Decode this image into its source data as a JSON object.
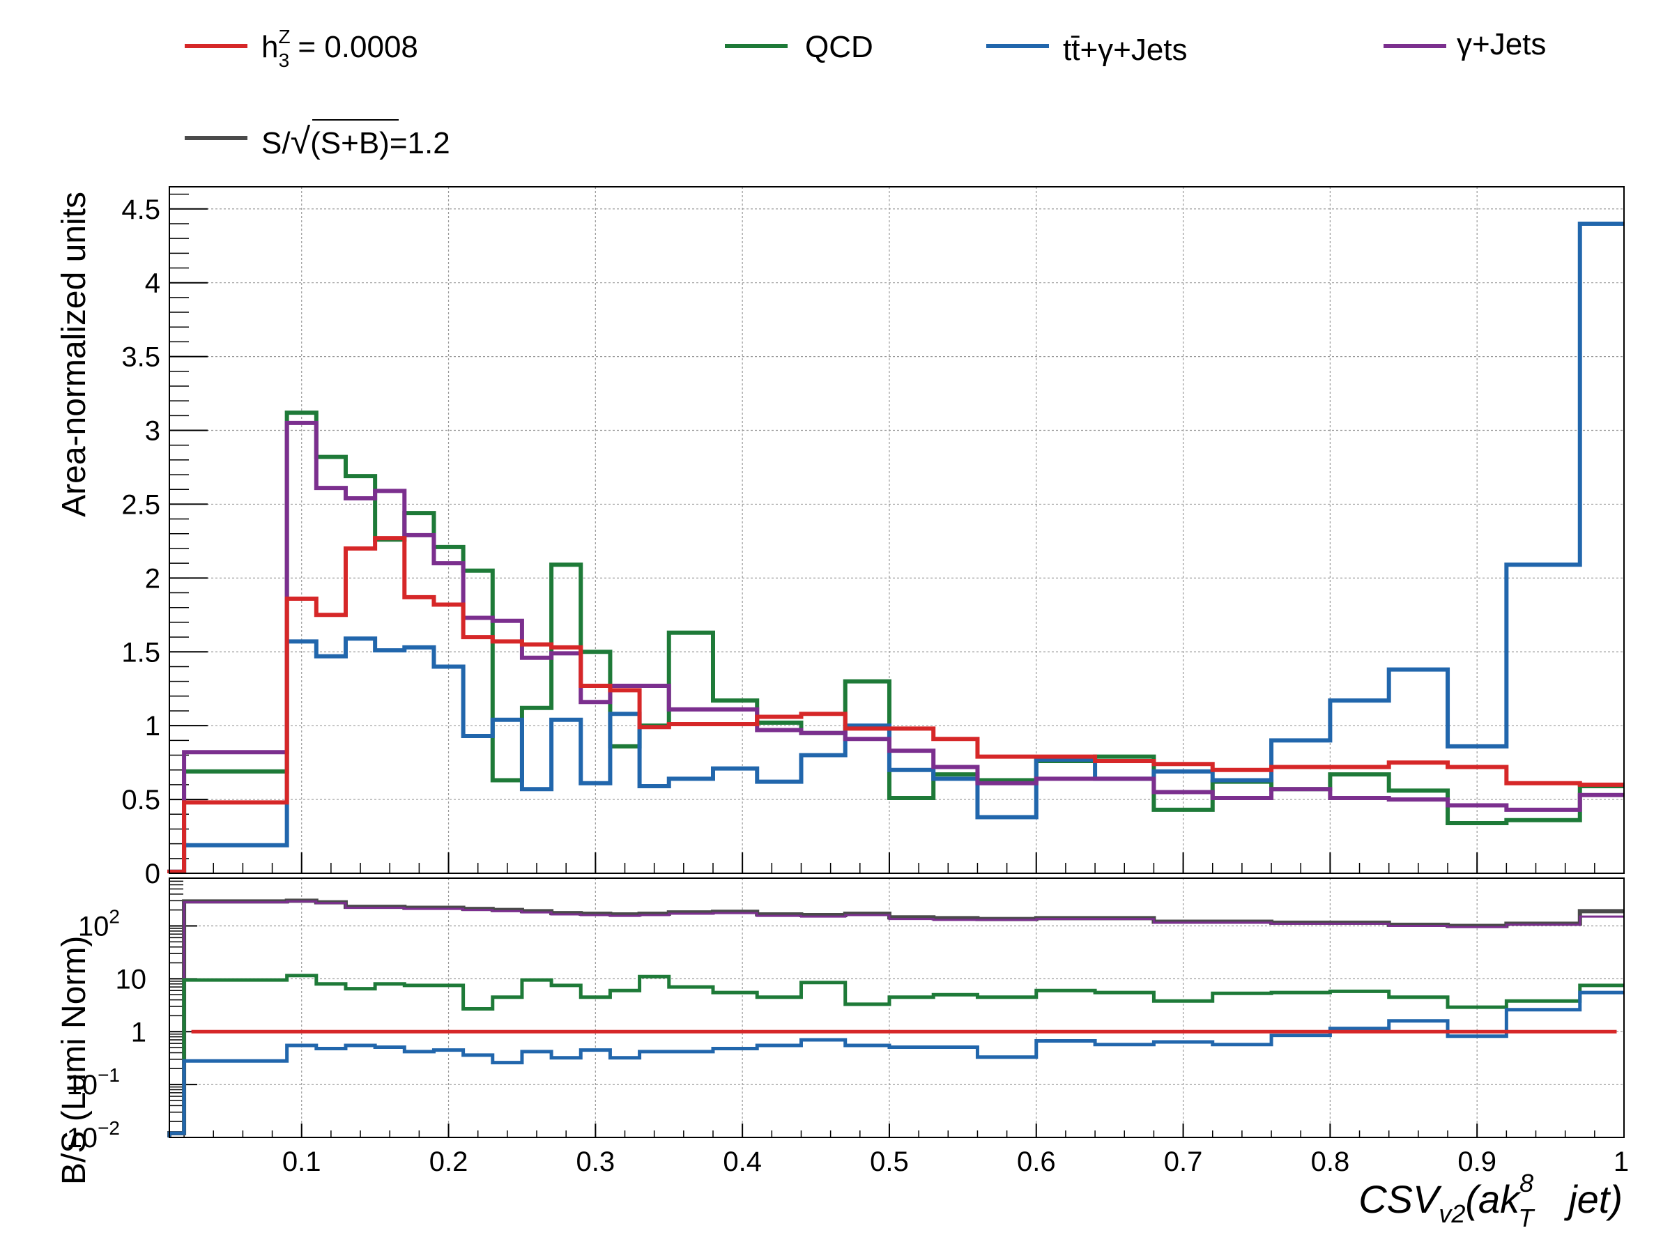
{
  "chart_data": [
    {
      "type": "line",
      "panel": "main",
      "ylabel": "Area-normalized units",
      "xlim": [
        0.01,
        1.0
      ],
      "ylim": [
        0,
        4.65
      ],
      "x_ticks": [
        "0.1",
        "0.2",
        "0.3",
        "0.4",
        "0.5",
        "0.6",
        "0.7",
        "0.8",
        "0.9",
        "1"
      ],
      "y_ticks": [
        "0",
        "0.5",
        "1",
        "1.5",
        "2",
        "2.5",
        "3",
        "3.5",
        "4",
        "4.5"
      ],
      "grid": true,
      "legend_placement": "top",
      "bin_edges": [
        0.01,
        0.02,
        0.09,
        0.11,
        0.13,
        0.15,
        0.17,
        0.19,
        0.21,
        0.23,
        0.25,
        0.27,
        0.29,
        0.31,
        0.33,
        0.35,
        0.38,
        0.41,
        0.44,
        0.47,
        0.5,
        0.53,
        0.56,
        0.6,
        0.64,
        0.68,
        0.72,
        0.76,
        0.8,
        0.84,
        0.88,
        0.92,
        0.97,
        1.0
      ],
      "series": [
        {
          "name": "QCD",
          "color": "#1e7a38",
          "values": [
            0.01,
            0.69,
            3.12,
            2.82,
            2.69,
            2.26,
            2.44,
            2.21,
            2.05,
            0.63,
            1.12,
            2.09,
            1.5,
            0.86,
            1.0,
            1.63,
            1.17,
            1.02,
            0.95,
            1.3,
            0.51,
            0.67,
            0.63,
            0.76,
            0.79,
            0.43,
            0.62,
            0.57,
            0.67,
            0.56,
            0.34,
            0.36,
            0.59
          ]
        },
        {
          "name": "tt̄+γ+Jets",
          "color": "#2166ac",
          "values": [
            0.01,
            0.19,
            1.57,
            1.47,
            1.59,
            1.51,
            1.53,
            1.4,
            0.93,
            1.04,
            0.57,
            1.04,
            0.61,
            1.08,
            0.59,
            0.64,
            0.71,
            0.62,
            0.8,
            1.0,
            0.7,
            0.64,
            0.38,
            0.77,
            0.64,
            0.69,
            0.63,
            0.9,
            1.17,
            1.38,
            0.86,
            2.09,
            4.4
          ]
        },
        {
          "name": "γ+Jets",
          "color": "#7b2f8e",
          "values": [
            0.01,
            0.82,
            3.05,
            2.61,
            2.54,
            2.59,
            2.29,
            2.1,
            1.73,
            1.71,
            1.46,
            1.49,
            1.16,
            1.27,
            1.27,
            1.11,
            1.11,
            0.97,
            0.95,
            0.91,
            0.83,
            0.72,
            0.61,
            0.64,
            0.64,
            0.55,
            0.51,
            0.57,
            0.51,
            0.5,
            0.46,
            0.43,
            0.53
          ]
        },
        {
          "name": "h3Z = 0.0008",
          "color": "#d62728",
          "values": [
            0.01,
            0.48,
            1.86,
            1.75,
            2.2,
            2.27,
            1.87,
            1.82,
            1.6,
            1.57,
            1.55,
            1.53,
            1.27,
            1.24,
            0.99,
            1.01,
            1.01,
            1.06,
            1.08,
            0.98,
            0.98,
            0.91,
            0.79,
            0.79,
            0.76,
            0.74,
            0.7,
            0.72,
            0.72,
            0.75,
            0.72,
            0.61,
            0.6
          ]
        }
      ]
    },
    {
      "type": "line",
      "panel": "ratio",
      "ylabel": "B/S (Lumi Norm)",
      "xlabel_main": "CSV",
      "xlabel_sub": "v2",
      "xlabel_open": "(ak",
      "xlabel_sup": "8",
      "xlabel_subT": "T",
      "xlabel_end": "jet)",
      "xlim": [
        0.01,
        1.0
      ],
      "ylim": [
        0.01,
        800
      ],
      "log_y": true,
      "y_tick_labels": [
        {
          "base": "10",
          "exp": "−2",
          "value": 0.01
        },
        {
          "base": "10",
          "exp": "−1",
          "value": 0.1
        },
        {
          "base": "1",
          "exp": "",
          "value": 1
        },
        {
          "base": "10",
          "exp": "",
          "value": 10
        },
        {
          "base": "10",
          "exp": "2",
          "value": 100
        }
      ],
      "bin_edges": [
        0.01,
        0.02,
        0.09,
        0.11,
        0.13,
        0.15,
        0.17,
        0.19,
        0.21,
        0.23,
        0.25,
        0.27,
        0.29,
        0.31,
        0.33,
        0.35,
        0.38,
        0.41,
        0.44,
        0.47,
        0.5,
        0.53,
        0.56,
        0.6,
        0.64,
        0.68,
        0.72,
        0.76,
        0.8,
        0.84,
        0.88,
        0.92,
        0.97,
        1.0
      ],
      "series": [
        {
          "name": "S/√(S+B)=1.2",
          "color": "#4a4a4a",
          "width": 6,
          "values": [
            0.012,
            290,
            300,
            280,
            230,
            230,
            220,
            220,
            210,
            200,
            190,
            175,
            170,
            165,
            170,
            180,
            185,
            165,
            160,
            170,
            145,
            140,
            135,
            140,
            140,
            120,
            120,
            115,
            115,
            105,
            100,
            110,
            190
          ]
        },
        {
          "name": "γ+Jets",
          "color": "#7b2f8e",
          "width": 3,
          "values": [
            0.012,
            280,
            290,
            270,
            220,
            220,
            210,
            210,
            200,
            190,
            180,
            165,
            160,
            155,
            160,
            170,
            175,
            155,
            150,
            160,
            135,
            130,
            130,
            135,
            135,
            115,
            115,
            110,
            110,
            100,
            95,
            105,
            150
          ]
        },
        {
          "name": "QCD",
          "color": "#1e7a38",
          "width": 5,
          "values": [
            0.012,
            9.5,
            11.5,
            8,
            6.5,
            8,
            7.5,
            7.5,
            2.7,
            4.5,
            9.5,
            7.5,
            4.5,
            6,
            11,
            7,
            5.5,
            4.5,
            8.5,
            3.3,
            4.5,
            5,
            4.5,
            6,
            5.5,
            3.8,
            5.3,
            5.5,
            5.8,
            4.5,
            2.9,
            3.8,
            7.5
          ]
        },
        {
          "name": "tt̄+γ+Jets",
          "color": "#2166ac",
          "width": 5,
          "values": [
            0.012,
            0.28,
            0.55,
            0.48,
            0.55,
            0.51,
            0.42,
            0.45,
            0.36,
            0.26,
            0.42,
            0.32,
            0.45,
            0.32,
            0.42,
            0.42,
            0.48,
            0.55,
            0.7,
            0.55,
            0.51,
            0.51,
            0.33,
            0.67,
            0.57,
            0.64,
            0.57,
            0.85,
            1.15,
            1.6,
            0.82,
            2.6,
            5.5
          ]
        },
        {
          "name": "h3Z = 0.0008",
          "color": "#d62728",
          "width": 5,
          "flat": 1.0,
          "x_from": 0.025,
          "x_to": 0.995
        }
      ]
    }
  ],
  "legend": {
    "entries": [
      {
        "key": "signal",
        "label_pre": "h",
        "label_sup": "Z",
        "label_sub": "3",
        "label_post": " = 0.0008",
        "color": "#d62728"
      },
      {
        "key": "qcd",
        "label": "QCD",
        "color": "#1e7a38"
      },
      {
        "key": "ttgamma",
        "label": "tt̄+γ+Jets",
        "color": "#2166ac"
      },
      {
        "key": "gammajets",
        "label": "γ+Jets",
        "color": "#7b2f8e"
      },
      {
        "key": "significance",
        "label_pre": "S/",
        "label_root": "√",
        "label_post": "(S+B)=1.2",
        "color": "#4a4a4a"
      }
    ]
  }
}
